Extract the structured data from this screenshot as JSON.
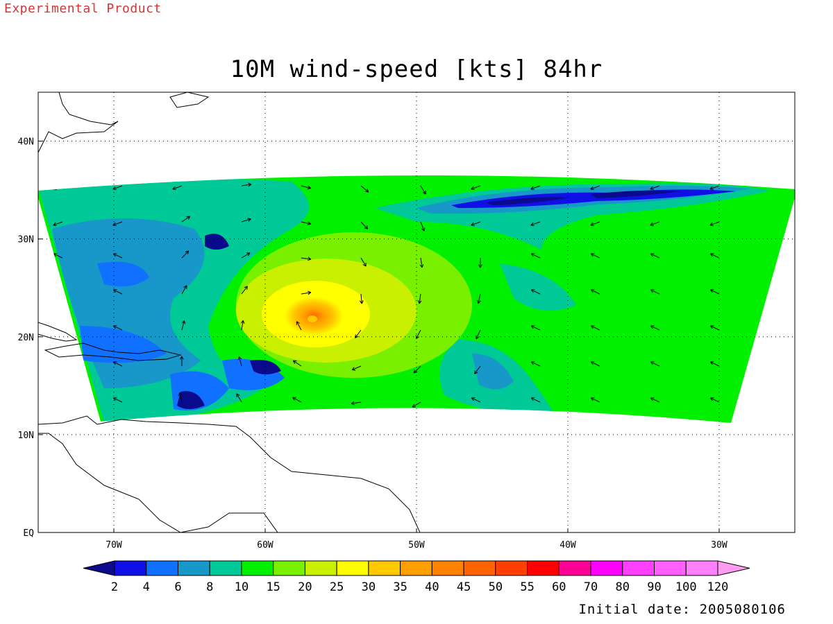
{
  "header": {
    "banner": "Experimental Product",
    "title": "10M wind-speed [kts] 84hr"
  },
  "map": {
    "lon_range": [
      -75,
      -25
    ],
    "lat_range": [
      0,
      45
    ],
    "lon_ticks": [
      {
        "value": -70,
        "label": "70W"
      },
      {
        "value": -60,
        "label": "60W"
      },
      {
        "value": -50,
        "label": "50W"
      },
      {
        "value": -40,
        "label": "40W"
      },
      {
        "value": -30,
        "label": "30W"
      }
    ],
    "lat_ticks": [
      {
        "value": 0,
        "label": "EQ"
      },
      {
        "value": 10,
        "label": "10N"
      },
      {
        "value": 20,
        "label": "20N"
      },
      {
        "value": 30,
        "label": "30N"
      },
      {
        "value": 40,
        "label": "40N"
      }
    ],
    "grid": "dotted",
    "storm_center": {
      "lon": -56.5,
      "lat": 21.8,
      "max_wind_kts": 55
    }
  },
  "colorbar": {
    "labels": [
      "2",
      "4",
      "6",
      "8",
      "10",
      "15",
      "20",
      "25",
      "30",
      "35",
      "40",
      "45",
      "50",
      "55",
      "60",
      "70",
      "80",
      "90",
      "100",
      "120"
    ],
    "colors": [
      "#0a0a8c",
      "#1010e6",
      "#1070ff",
      "#1898c8",
      "#00c896",
      "#00f000",
      "#78f000",
      "#c8f000",
      "#ffff00",
      "#ffc800",
      "#ffa000",
      "#ff8200",
      "#ff6400",
      "#ff4000",
      "#ff0000",
      "#ff0096",
      "#ff00ff",
      "#ff40ff",
      "#ff60ff",
      "#ff80ff",
      "#ff9cf0"
    ]
  },
  "footer": {
    "initial_date": "Initial date: 2005080106"
  }
}
